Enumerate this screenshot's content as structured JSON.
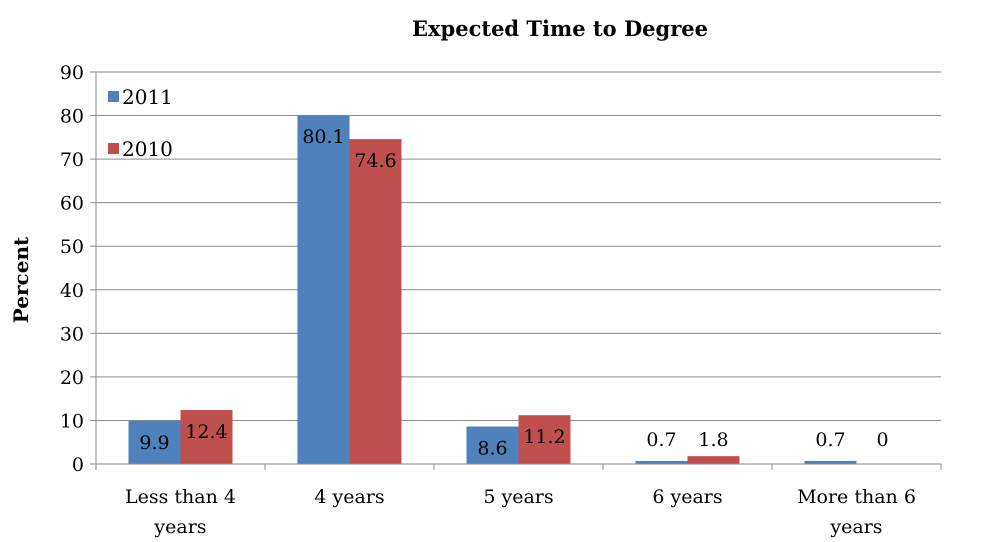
{
  "chart_data": {
    "type": "bar",
    "title": "Expected Time to Degree",
    "xlabel": "",
    "ylabel": "Percent",
    "ylim": [
      0,
      90
    ],
    "yticks": [
      "0",
      "10",
      "20",
      "30",
      "40",
      "50",
      "60",
      "70",
      "80",
      "90"
    ],
    "categories": [
      "Less than 4 years",
      "4 years",
      "5 years",
      "6 years",
      "More than 6 years"
    ],
    "category_lines": [
      [
        "Less than 4",
        "years"
      ],
      [
        "4 years"
      ],
      [
        "5 years"
      ],
      [
        "6 years"
      ],
      [
        "More than 6",
        "years"
      ]
    ],
    "series": [
      {
        "name": "2011",
        "color": "#4F81BD",
        "values": [
          9.9,
          80.1,
          8.6,
          0.7,
          0.7
        ],
        "labels": [
          "9.9",
          "80.1",
          "8.6",
          "0.7",
          "0.7"
        ]
      },
      {
        "name": "2010",
        "color": "#C0504D",
        "values": [
          12.4,
          74.6,
          11.2,
          1.8,
          0
        ],
        "labels": [
          "12.4",
          "74.6",
          "11.2",
          "1.8",
          "0"
        ]
      }
    ],
    "grid": true,
    "legend_position": "top-left"
  }
}
